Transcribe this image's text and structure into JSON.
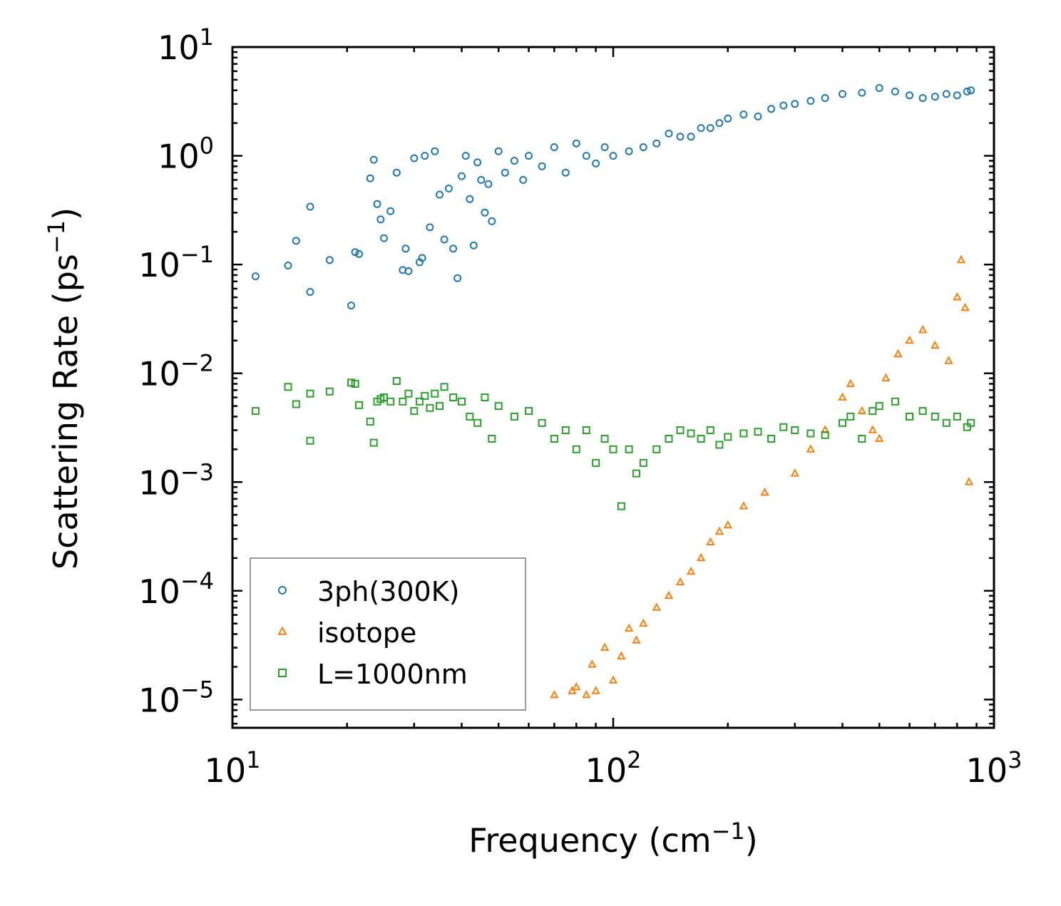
{
  "chart_data": {
    "type": "scatter",
    "title": "",
    "xlabel": "Frequency (cm",
    "xlabel_sup": "−1",
    "xlabel_close": ")",
    "ylabel": "Scattering Rate (ps",
    "ylabel_sup": "−1",
    "ylabel_close": ")",
    "xscale": "log",
    "yscale": "log",
    "xlim": [
      10,
      1000
    ],
    "ylim": [
      5.5e-06,
      10
    ],
    "x_ticks": [
      {
        "value": 10,
        "base": "10",
        "exp": "1"
      },
      {
        "value": 100,
        "base": "10",
        "exp": "2"
      },
      {
        "value": 1000,
        "base": "10",
        "exp": "3"
      }
    ],
    "y_ticks": [
      {
        "value": 10,
        "base": "10",
        "exp": "1"
      },
      {
        "value": 1,
        "base": "10",
        "exp": "0"
      },
      {
        "value": 0.1,
        "base": "10",
        "exp": "−1"
      },
      {
        "value": 0.01,
        "base": "10",
        "exp": "−2"
      },
      {
        "value": 0.001,
        "base": "10",
        "exp": "−3"
      },
      {
        "value": 0.0001,
        "base": "10",
        "exp": "−4"
      },
      {
        "value": 1e-05,
        "base": "10",
        "exp": "−5"
      }
    ],
    "legend_position": "lower-left",
    "series": [
      {
        "name": "3ph(300K)",
        "marker": "circle",
        "color": "#1f77b4",
        "x": [
          11.5,
          14,
          14.7,
          16,
          16,
          18,
          20.5,
          21,
          21.5,
          23,
          23.5,
          24,
          24.5,
          25,
          26,
          27,
          28,
          28.5,
          29,
          30,
          31,
          31.5,
          32,
          33,
          34,
          35,
          36,
          37,
          38,
          39,
          40,
          41,
          42,
          43,
          44,
          45,
          46,
          47,
          48,
          50,
          52,
          55,
          58,
          60,
          65,
          70,
          75,
          80,
          85,
          90,
          95,
          100,
          110,
          120,
          130,
          140,
          150,
          160,
          170,
          180,
          190,
          200,
          220,
          240,
          260,
          280,
          300,
          330,
          360,
          400,
          450,
          500,
          550,
          600,
          650,
          700,
          750,
          800,
          850,
          870
        ],
        "y": [
          0.078,
          0.098,
          0.165,
          0.34,
          0.056,
          0.11,
          0.042,
          0.13,
          0.125,
          0.62,
          0.92,
          0.36,
          0.26,
          0.175,
          0.31,
          0.7,
          0.089,
          0.14,
          0.087,
          0.95,
          0.105,
          0.115,
          1.0,
          0.22,
          1.1,
          0.44,
          0.17,
          0.5,
          0.14,
          0.075,
          0.65,
          1.0,
          0.4,
          0.15,
          0.87,
          0.6,
          0.3,
          0.55,
          0.25,
          1.1,
          0.7,
          0.9,
          0.6,
          1.0,
          0.8,
          1.2,
          0.7,
          1.3,
          1.0,
          0.85,
          1.2,
          1.0,
          1.1,
          1.2,
          1.3,
          1.6,
          1.5,
          1.5,
          1.8,
          1.8,
          2.0,
          2.2,
          2.4,
          2.3,
          2.7,
          2.9,
          3.0,
          3.2,
          3.4,
          3.7,
          3.8,
          4.2,
          3.9,
          3.6,
          3.4,
          3.5,
          3.7,
          3.6,
          3.9,
          4.0
        ]
      },
      {
        "name": "isotope",
        "marker": "triangle",
        "color": "#ff7f0e",
        "x": [
          70,
          78,
          80,
          85,
          88,
          90,
          95,
          100,
          105,
          110,
          115,
          120,
          130,
          140,
          150,
          160,
          170,
          180,
          190,
          200,
          220,
          250,
          300,
          330,
          360,
          400,
          420,
          450,
          480,
          500,
          520,
          560,
          600,
          650,
          700,
          760,
          800,
          820,
          840,
          860
        ],
        "y": [
          1.1e-05,
          1.2e-05,
          1.3e-05,
          1.1e-05,
          2.1e-05,
          1.2e-05,
          3e-05,
          1.5e-05,
          2.5e-05,
          4.5e-05,
          3.5e-05,
          5e-05,
          7e-05,
          9e-05,
          0.00012,
          0.00015,
          0.0002,
          0.00028,
          0.00035,
          0.0004,
          0.0006,
          0.0008,
          0.0012,
          0.002,
          0.003,
          0.006,
          0.008,
          0.0045,
          0.003,
          0.0025,
          0.009,
          0.015,
          0.02,
          0.025,
          0.018,
          0.013,
          0.05,
          0.11,
          0.04,
          0.001
        ]
      },
      {
        "name": "L=1000nm",
        "marker": "square",
        "color": "#2ca02c",
        "x": [
          11.5,
          14,
          14.7,
          16,
          16,
          18,
          20.5,
          21,
          21.5,
          23,
          23.5,
          24,
          24.5,
          25,
          26,
          27,
          28,
          29,
          30,
          31,
          32,
          33,
          34,
          35,
          36,
          38,
          40,
          42,
          44,
          46,
          48,
          50,
          55,
          60,
          65,
          70,
          75,
          80,
          85,
          90,
          95,
          100,
          105,
          110,
          115,
          120,
          130,
          140,
          150,
          160,
          170,
          180,
          190,
          200,
          220,
          240,
          260,
          280,
          300,
          330,
          360,
          400,
          420,
          450,
          480,
          500,
          550,
          600,
          650,
          700,
          750,
          800,
          850,
          870
        ],
        "y": [
          0.0045,
          0.0075,
          0.0052,
          0.0024,
          0.0065,
          0.0068,
          0.0082,
          0.008,
          0.0051,
          0.0036,
          0.0023,
          0.0055,
          0.0058,
          0.006,
          0.0055,
          0.0085,
          0.0055,
          0.0065,
          0.0045,
          0.0055,
          0.0062,
          0.0048,
          0.0065,
          0.005,
          0.0075,
          0.006,
          0.0055,
          0.004,
          0.0035,
          0.006,
          0.0025,
          0.005,
          0.004,
          0.0045,
          0.0035,
          0.0025,
          0.003,
          0.002,
          0.003,
          0.0015,
          0.0025,
          0.002,
          0.0006,
          0.002,
          0.0012,
          0.0015,
          0.002,
          0.0025,
          0.003,
          0.0028,
          0.0025,
          0.003,
          0.0022,
          0.0026,
          0.0028,
          0.0029,
          0.0025,
          0.0032,
          0.003,
          0.0028,
          0.0027,
          0.0035,
          0.004,
          0.0025,
          0.0045,
          0.005,
          0.0055,
          0.004,
          0.0045,
          0.004,
          0.0035,
          0.004,
          0.0032,
          0.0035
        ]
      }
    ]
  }
}
